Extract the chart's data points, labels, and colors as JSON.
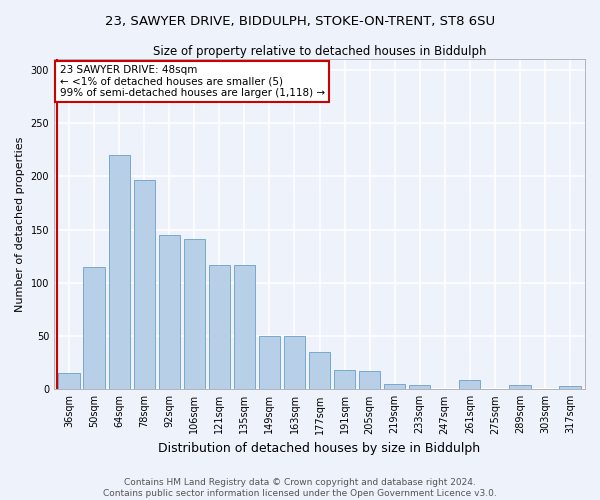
{
  "title_line1": "23, SAWYER DRIVE, BIDDULPH, STOKE-ON-TRENT, ST8 6SU",
  "title_line2": "Size of property relative to detached houses in Biddulph",
  "xlabel": "Distribution of detached houses by size in Biddulph",
  "ylabel": "Number of detached properties",
  "categories": [
    "36sqm",
    "50sqm",
    "64sqm",
    "78sqm",
    "92sqm",
    "106sqm",
    "121sqm",
    "135sqm",
    "149sqm",
    "163sqm",
    "177sqm",
    "191sqm",
    "205sqm",
    "219sqm",
    "233sqm",
    "247sqm",
    "261sqm",
    "275sqm",
    "289sqm",
    "303sqm",
    "317sqm"
  ],
  "values": [
    15,
    115,
    220,
    197,
    145,
    141,
    117,
    117,
    50,
    50,
    35,
    18,
    17,
    5,
    4,
    0,
    9,
    0,
    4,
    0,
    3
  ],
  "bar_color": "#b8cfe8",
  "bar_edge_color": "#6a9fc8",
  "annotation_box_text": "23 SAWYER DRIVE: 48sqm\n← <1% of detached houses are smaller (5)\n99% of semi-detached houses are larger (1,118) →",
  "annotation_box_color": "white",
  "annotation_box_edge_color": "#cc0000",
  "vline_color": "#cc0000",
  "vline_x": -0.5,
  "ylim": [
    0,
    310
  ],
  "yticks": [
    0,
    50,
    100,
    150,
    200,
    250,
    300
  ],
  "footer_line1": "Contains HM Land Registry data © Crown copyright and database right 2024.",
  "footer_line2": "Contains public sector information licensed under the Open Government Licence v3.0.",
  "background_color": "#eef2fa",
  "grid_color": "white",
  "title_fontsize": 9.5,
  "subtitle_fontsize": 8.5,
  "ylabel_fontsize": 8,
  "xlabel_fontsize": 9,
  "tick_fontsize": 7,
  "footer_fontsize": 6.5,
  "ann_fontsize": 7.5
}
